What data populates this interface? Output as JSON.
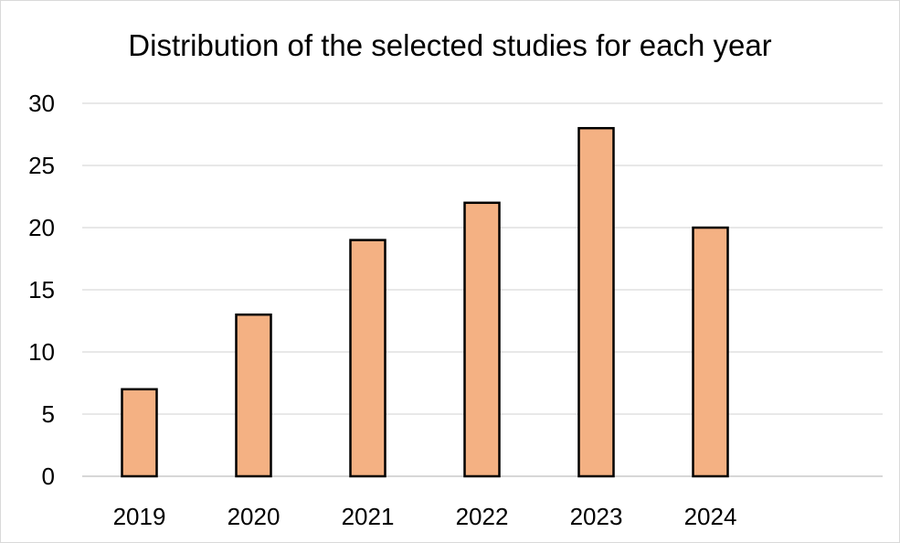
{
  "chart_data": {
    "type": "bar",
    "title": "Distribution of the selected studies for each year",
    "categories": [
      "2019",
      "2020",
      "2021",
      "2022",
      "2023",
      "2024"
    ],
    "values": [
      7,
      13,
      19,
      22,
      28,
      20
    ],
    "xlabel": "",
    "ylabel": "",
    "ylim": [
      0,
      30
    ],
    "yticks": [
      0,
      5,
      10,
      15,
      20,
      25,
      30
    ],
    "grid": true,
    "legend": "none",
    "colors": {
      "bar_fill": "#f4b183",
      "bar_stroke": "#000000",
      "grid": "#d9d9d9",
      "axis": "#bfbfbf"
    }
  }
}
